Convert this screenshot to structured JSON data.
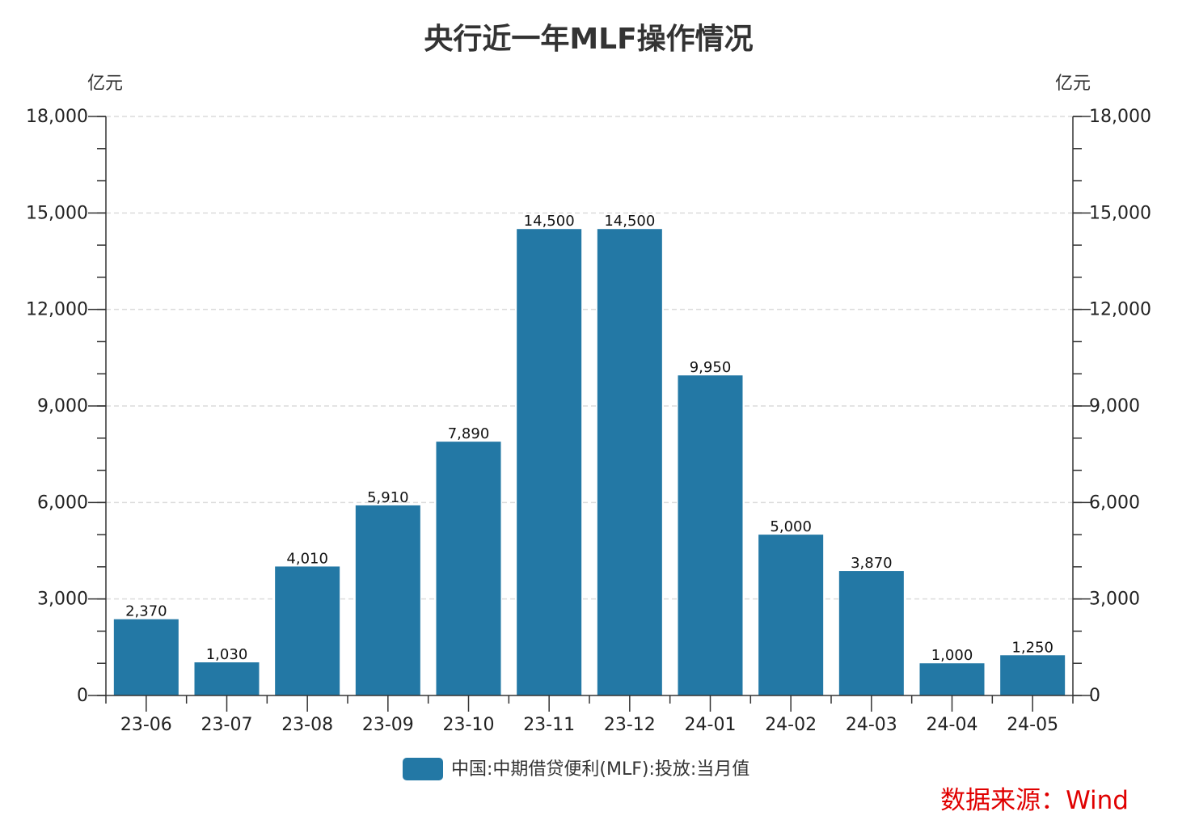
{
  "chart_data": {
    "type": "bar",
    "title": "央行近一年MLF操作情况",
    "ylabel_left": "亿元",
    "ylabel_right": "亿元",
    "categories": [
      "23-06",
      "23-07",
      "23-08",
      "23-09",
      "23-10",
      "23-11",
      "23-12",
      "24-01",
      "24-02",
      "24-03",
      "24-04",
      "24-05"
    ],
    "series": [
      {
        "name": "中国:中期借贷便利(MLF):投放:当月值",
        "values": [
          2370,
          1030,
          4010,
          5910,
          7890,
          14500,
          14500,
          9950,
          5000,
          3870,
          1000,
          1250
        ],
        "color": "#2378a5"
      }
    ],
    "data_labels": [
      "2,370",
      "1,030",
      "4,010",
      "5,910",
      "7,890",
      "14,500",
      "14,500",
      "9,950",
      "5,000",
      "3,870",
      "1,000",
      "1,250"
    ],
    "ylim": [
      0,
      18000
    ],
    "yticks": [
      0,
      3000,
      6000,
      9000,
      12000,
      15000,
      18000
    ],
    "ytick_labels": [
      "0",
      "3,000",
      "6,000",
      "9,000",
      "12,000",
      "15,000",
      "18,000"
    ],
    "grid": true,
    "legend_position": "bottom-center",
    "source": "数据来源：Wind",
    "source_color": "#e00000"
  }
}
